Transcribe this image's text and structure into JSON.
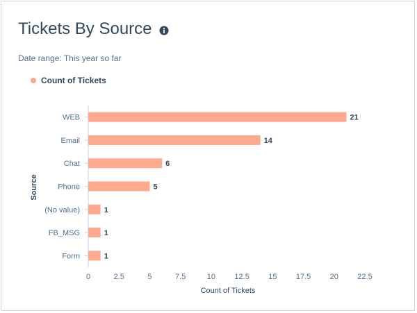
{
  "header": {
    "title": "Tickets By Source",
    "info_icon": "info-circle-icon",
    "date_range": "Date range: This year so far"
  },
  "colors": {
    "bar": "#ffa98f",
    "text": "#33475b",
    "axis_text": "#516f90",
    "grid": "#dfe3eb"
  },
  "chart_data": {
    "type": "bar",
    "orientation": "horizontal",
    "categories": [
      "WEB",
      "Email",
      "Chat",
      "Phone",
      "(No value)",
      "FB_MSG",
      "Form"
    ],
    "series": [
      {
        "name": "Count of Tickets",
        "values": [
          21,
          14,
          6,
          5,
          1,
          1,
          1
        ]
      }
    ],
    "data_labels": [
      "21",
      "14",
      "6",
      "5",
      "1",
      "1",
      "1"
    ],
    "xlabel": "Count of Tickets",
    "ylabel": "Source",
    "xlim": [
      0,
      22.5
    ],
    "xticks": [
      0,
      2.5,
      5,
      7.5,
      10,
      12.5,
      15,
      17.5,
      20,
      22.5
    ],
    "xtick_labels": [
      "0",
      "2.5",
      "5",
      "7.5",
      "10",
      "12.5",
      "15",
      "17.5",
      "20",
      "22.5"
    ],
    "legend_position": "top-left",
    "grid": false
  }
}
